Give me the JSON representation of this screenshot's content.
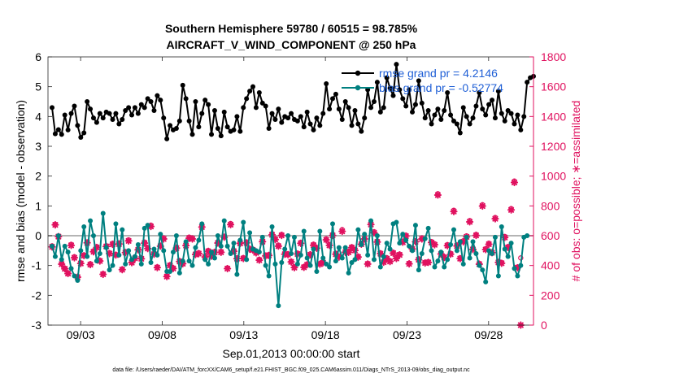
{
  "chart_data": {
    "type": "line",
    "title": "Southern Hemisphere 59780 / 60515 = 98.785%",
    "subtitle": "AIRCRAFT_V_WIND_COMPONENT @ 250 hPa",
    "xlabel": "Sep.01,2013 00:00:00 start",
    "ylabel": "rmse and bias (model - observation)",
    "y2label": "# of obs: o=possible; ∗=assimilated",
    "footer": "data file: /Users/raeder/DAI/ATM_forcXX/CAM6_setup/f.e21.FHIST_BGC.f09_025.CAM6assim.011/Diags_NTrS_2013-09/obs_diag_output.nc",
    "xlim": [
      1,
      30.75
    ],
    "ylim": [
      -3,
      6
    ],
    "y2lim": [
      0,
      1800
    ],
    "x_ticks": [
      {
        "x": 3,
        "label": "09/03"
      },
      {
        "x": 8,
        "label": "09/08"
      },
      {
        "x": 13,
        "label": "09/13"
      },
      {
        "x": 18,
        "label": "09/18"
      },
      {
        "x": 23,
        "label": "09/23"
      },
      {
        "x": 28,
        "label": "09/28"
      }
    ],
    "y_ticks": [
      "-3",
      "-2",
      "-1",
      "0",
      "1",
      "2",
      "3",
      "4",
      "5",
      "6"
    ],
    "y2_ticks": [
      "0",
      "200",
      "400",
      "600",
      "800",
      "1000",
      "1200",
      "1400",
      "1600",
      "1800"
    ],
    "legend": {
      "position": "top-right",
      "entries": [
        "rmse grand pr = 4.2146",
        "bias grand pr = -0.52774"
      ]
    },
    "colors": {
      "rmse": "#000000",
      "bias": "#008080",
      "obs": "#e0115f",
      "zero_line": "#b4b4b4",
      "legend_text": "#1f5fd6",
      "y2_axis": "#e0115f"
    },
    "series": [
      {
        "name": "rmse",
        "values": [
          4.3,
          3.42,
          3.56,
          3.4,
          4.05,
          3.55,
          4.1,
          4.35,
          3.7,
          3.3,
          3.45,
          4.5,
          4.25,
          3.95,
          3.8,
          4.1,
          3.95,
          4.15,
          4.1,
          3.9,
          4.1,
          3.75,
          3.9,
          4.2,
          4.3,
          4.05,
          4.3,
          4.1,
          4.4,
          4.3,
          4.6,
          4.5,
          4.2,
          4.7,
          4.55,
          3.95,
          3.25,
          3.7,
          3.55,
          3.6,
          3.85,
          5.05,
          4.6,
          3.85,
          3.4,
          4.5,
          3.65,
          4.1,
          4.55,
          4.4,
          3.4,
          4.2,
          3.6,
          3.35,
          4.15,
          3.65,
          3.5,
          3.55,
          4.0,
          3.5,
          4.3,
          4.6,
          4.85,
          5.0,
          4.3,
          4.8,
          4.45,
          4.35,
          3.6,
          4.1,
          3.9,
          4.25,
          3.8,
          4.0,
          3.95,
          4.1,
          3.9,
          3.85,
          4.0,
          3.65,
          4.15,
          3.75,
          3.55,
          3.95,
          3.7,
          4.1,
          5.1,
          4.25,
          4.6,
          4.75,
          4.25,
          3.9,
          4.5,
          4.3,
          3.7,
          4.2,
          3.75,
          3.5,
          3.95,
          4.9,
          4.3,
          4.5,
          5.15,
          4.15,
          4.3,
          5.3,
          4.95,
          4.7,
          5.75,
          4.9,
          4.6,
          4.35,
          4.9,
          4.15,
          4.4,
          5.2,
          4.45,
          3.95,
          4.2,
          3.75,
          4.05,
          4.25,
          3.9,
          4.2,
          4.8,
          4.05,
          3.85,
          3.75,
          3.45,
          4.3,
          4.0,
          3.75,
          3.95,
          4.35,
          4.8,
          4.25,
          4.05,
          4.4,
          4.55,
          3.95,
          4.85,
          4.1,
          3.85,
          4.2,
          4.1,
          3.75,
          4.05,
          3.55,
          4.0,
          5.15,
          5.3,
          5.35
        ]
      },
      {
        "name": "bias",
        "values": [
          -0.35,
          -0.7,
          0.0,
          -0.8,
          -0.35,
          -0.55,
          -1.1,
          -1.35,
          -1.5,
          -0.5,
          0.3,
          -0.7,
          0.5,
          0.0,
          -0.85,
          -0.6,
          0.75,
          -0.4,
          -1.15,
          -1.0,
          0.4,
          -0.65,
          0.2,
          -0.95,
          -0.5,
          -0.8,
          -0.7,
          -0.3,
          -0.95,
          0.25,
          0.35,
          -0.9,
          -0.45,
          -0.65,
          0.05,
          -0.5,
          -1.2,
          -1.2,
          -0.55,
          0.0,
          -1.25,
          -0.85,
          -0.2,
          -0.85,
          -1.0,
          -0.4,
          -0.15,
          0.4,
          -0.8,
          -0.95,
          -0.55,
          -0.75,
          0.0,
          -0.35,
          0.5,
          -0.35,
          -0.6,
          -0.25,
          -1.3,
          -0.15,
          0.45,
          -0.8,
          0.1,
          -0.45,
          -0.5,
          -0.55,
          -0.05,
          -1.0,
          -1.35,
          0.3,
          -0.95,
          -2.35,
          -0.9,
          -0.45,
          0.0,
          -0.6,
          -0.05,
          -0.95,
          -0.65,
          0.15,
          -0.75,
          -1.0,
          -0.45,
          -1.2,
          0.15,
          -0.75,
          -0.95,
          -1.05,
          0.4,
          -0.85,
          -0.4,
          -0.75,
          -0.4,
          -1.25,
          -0.9,
          -0.8,
          0.2,
          -0.3,
          0.05,
          -0.65,
          0.5,
          -0.8,
          0.0,
          -1.05,
          -0.7,
          -0.25,
          -0.45,
          0.4,
          0.45,
          -0.25,
          0.05,
          -0.15,
          -0.35,
          -0.5,
          0.35,
          -1.15,
          -0.6,
          -0.1,
          0.25,
          -0.5,
          -1.05,
          -0.85,
          -0.55,
          -1.05,
          -0.8,
          -0.3,
          0.2,
          -0.5,
          -0.2,
          -0.95,
          -0.05,
          -0.75,
          -0.2,
          -0.6,
          -1.0,
          -1.15,
          -1.55,
          -0.5,
          -0.6,
          -0.05,
          -1.35,
          0.3,
          -0.45,
          -0.7,
          -0.25,
          -1.1,
          -1.35,
          -1.0,
          -0.05,
          0.0
        ]
      },
      {
        "name": "obs_possible",
        "values": [
          532,
          677,
          598,
          414,
          382,
          351,
          542,
          459,
          326,
          418,
          471,
          559,
          412,
          499,
          527,
          435,
          346,
          533,
          486,
          549,
          475,
          551,
          377,
          493,
          572,
          424,
          454,
          512,
          451,
          557,
          520,
          671,
          482,
          391,
          537,
          585,
          330,
          405,
          385,
          524,
          432,
          417,
          541,
          591,
          585,
          480,
          486,
          666,
          463,
          501,
          469,
          494,
          558,
          495,
          597,
          384,
          682,
          502,
          452,
          555,
          453,
          559,
          516,
          510,
          491,
          442,
          567,
          470,
          474,
          614,
          581,
          537,
          609,
          482,
          479,
          429,
          391,
          483,
          556,
          393,
          410,
          478,
          543,
          522,
          414,
          424,
          579,
          542,
          609,
          482,
          463,
          641,
          495,
          495,
          526,
          508,
          463,
          550,
          585,
          415,
          683,
          627,
          565,
          485,
          427,
          452,
          432,
          489,
          453,
          477,
          563,
          604,
          416,
          517,
          566,
          445,
          585,
          422,
          426,
          561,
          546,
          882,
          483,
          460,
          540,
          482,
          771,
          538,
          452,
          566,
          599,
          702,
          514,
          609,
          414,
          808,
          513,
          550,
          492,
          722,
          426,
          420,
          595,
          527,
          782,
          967,
          390,
          451
        ]
      },
      {
        "name": "obs_assimilated",
        "values": [
          525,
          673,
          594,
          409,
          378,
          346,
          535,
          452,
          322,
          414,
          466,
          552,
          406,
          492,
          521,
          430,
          341,
          528,
          480,
          542,
          470,
          544,
          372,
          487,
          565,
          419,
          448,
          505,
          445,
          550,
          514,
          662,
          476,
          386,
          530,
          578,
          326,
          400,
          380,
          517,
          427,
          412,
          534,
          583,
          578,
          474,
          480,
          658,
          457,
          495,
          463,
          488,
          551,
          489,
          590,
          379,
          674,
          496,
          446,
          548,
          447,
          552,
          509,
          504,
          485,
          436,
          560,
          464,
          468,
          606,
          574,
          530,
          602,
          476,
          473,
          424,
          386,
          477,
          549,
          388,
          405,
          472,
          536,
          516,
          409,
          419,
          572,
          535,
          602,
          476,
          457,
          629,
          489,
          489,
          520,
          501,
          457,
          543,
          578,
          410,
          675,
          620,
          558,
          479,
          422,
          446,
          427,
          483,
          447,
          471,
          556,
          597,
          411,
          511,
          559,
          439,
          578,
          417,
          421,
          554,
          539,
          873,
          477,
          454,
          533,
          476,
          762,
          531,
          446,
          559,
          592,
          693,
          508,
          602,
          409,
          799,
          507,
          543,
          486,
          714,
          421,
          415,
          588,
          521,
          773,
          957,
          385,
          0
        ]
      }
    ]
  }
}
